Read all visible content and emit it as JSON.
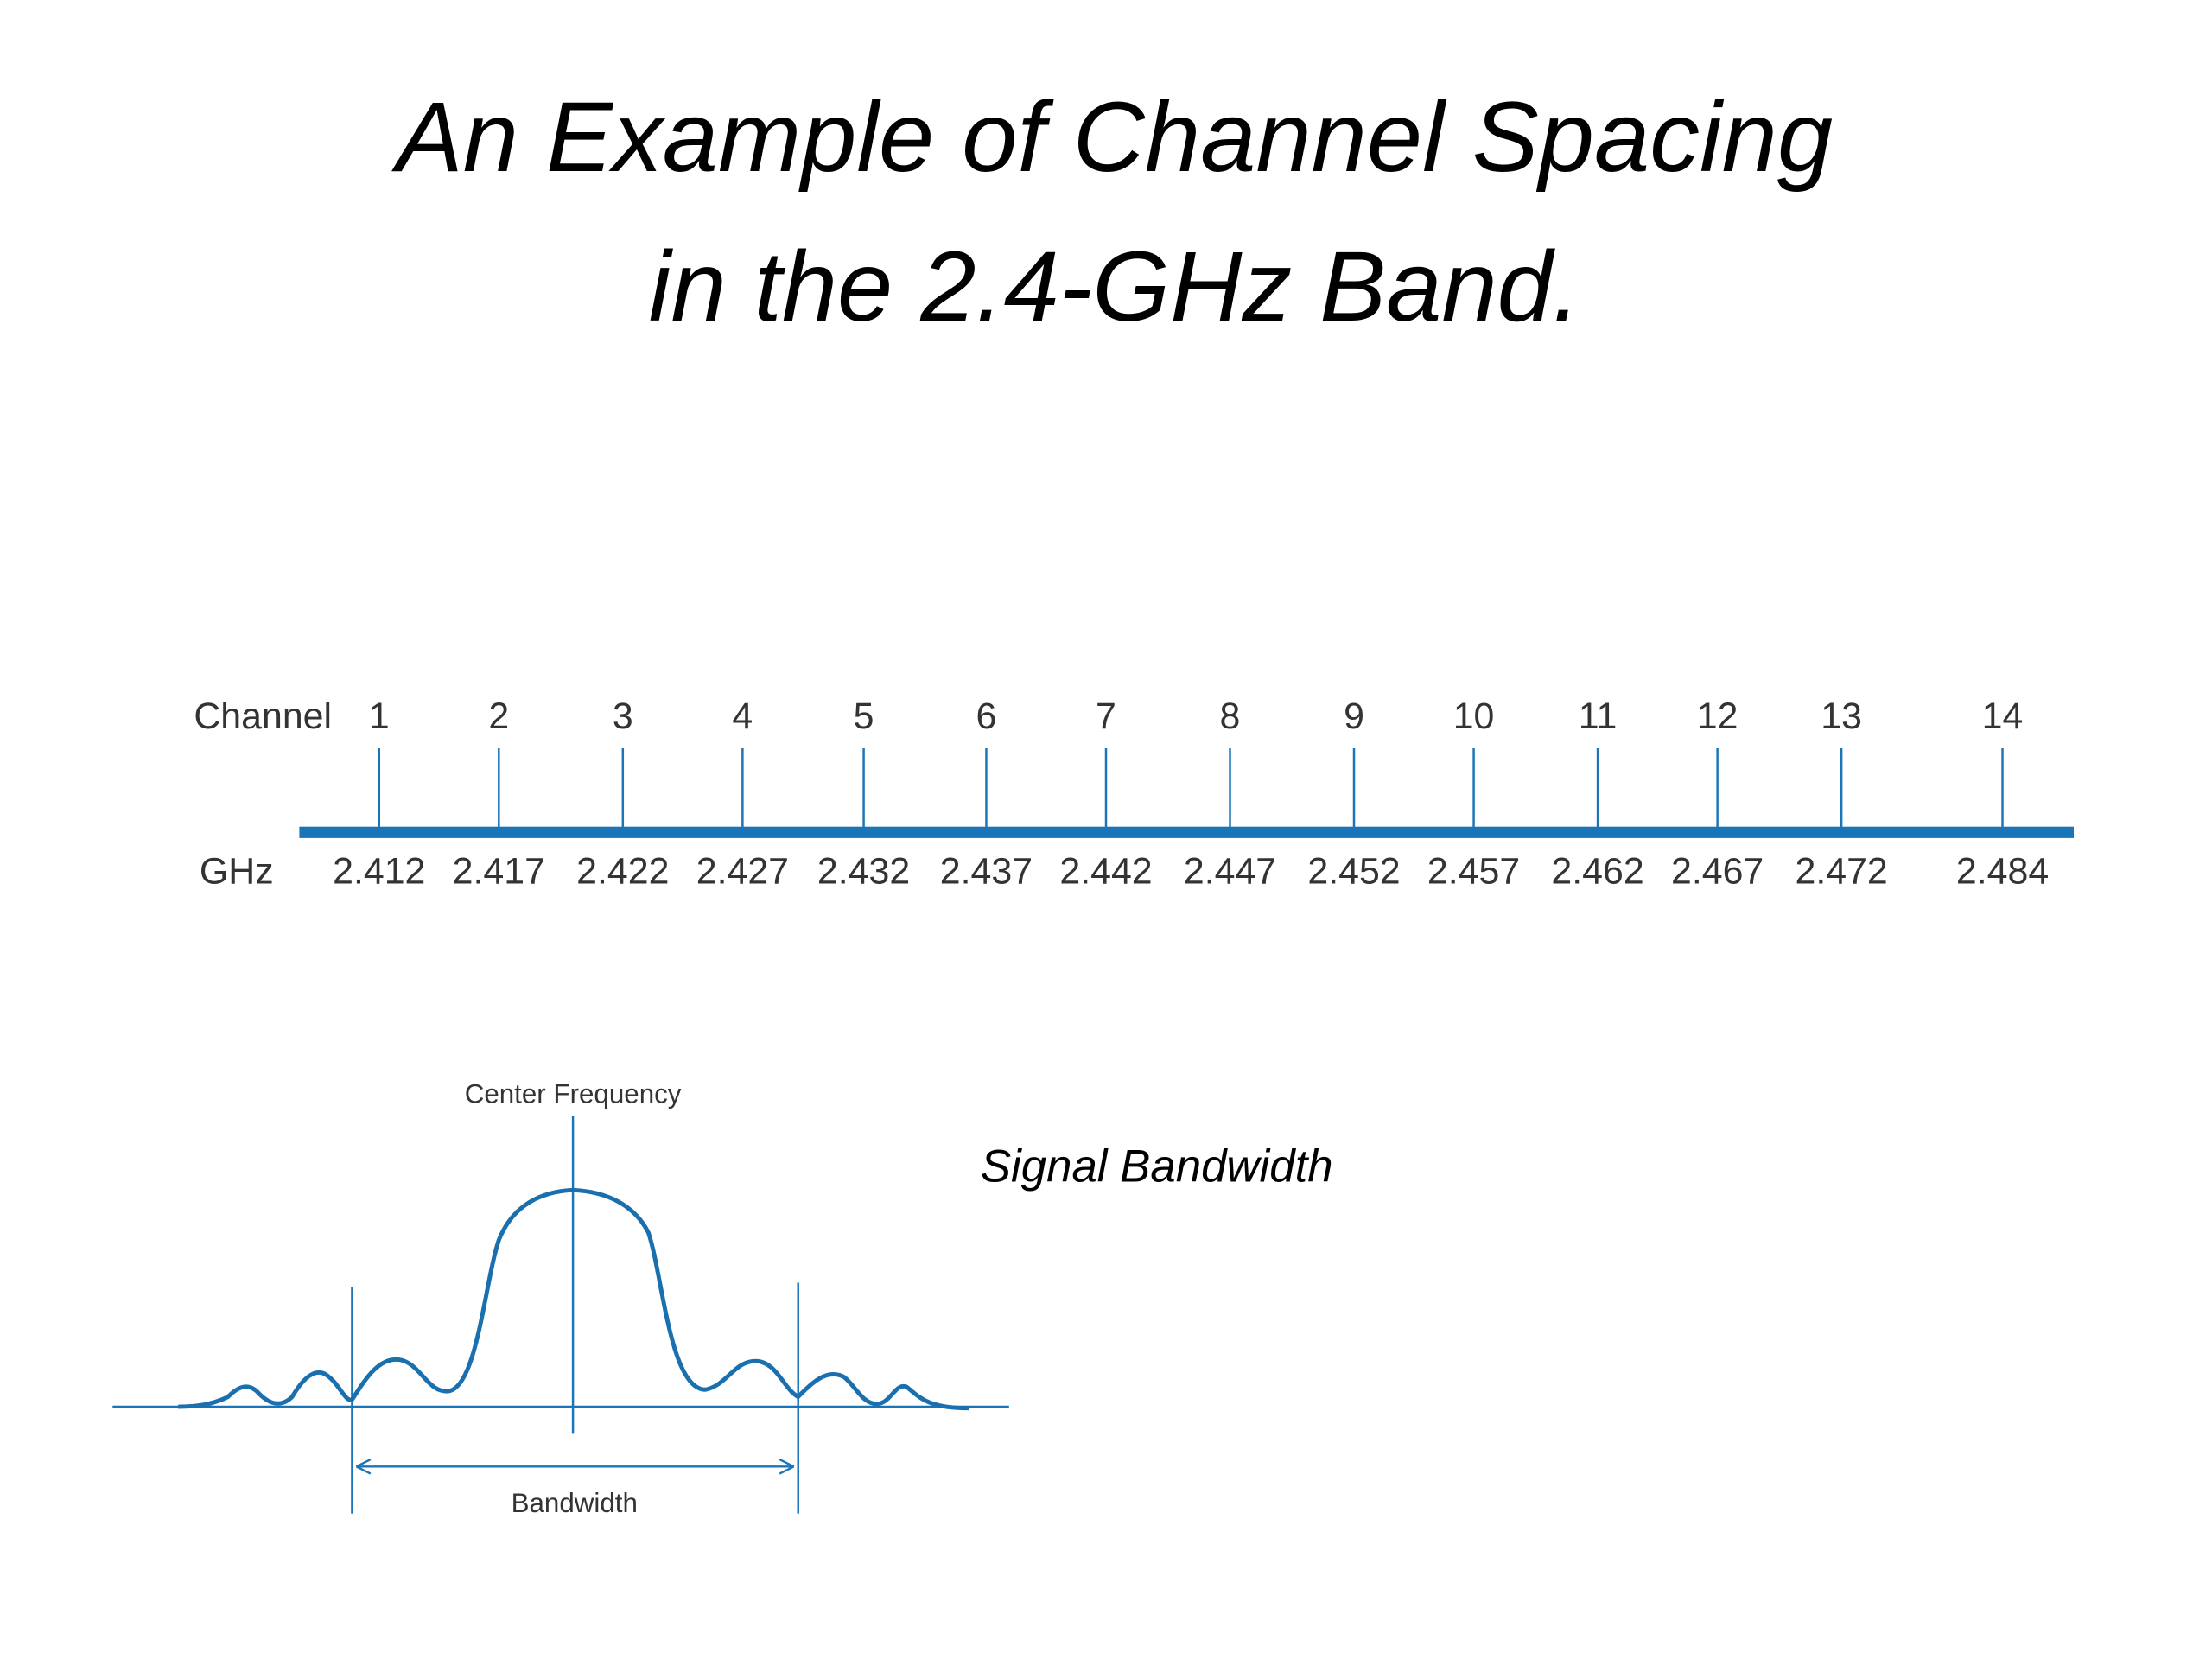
{
  "title": [
    "An Example of Channel Spacing",
    "in the 2.4-GHz Band."
  ],
  "channel_label": "Channel",
  "ghz_label": "GHz",
  "channels": [
    {
      "number": "1",
      "ghz": "2.412"
    },
    {
      "number": "2",
      "ghz": "2.417"
    },
    {
      "number": "3",
      "ghz": "2.422"
    },
    {
      "number": "4",
      "ghz": "2.427"
    },
    {
      "number": "5",
      "ghz": "2.432"
    },
    {
      "number": "6",
      "ghz": "2.437"
    },
    {
      "number": "7",
      "ghz": "2.442"
    },
    {
      "number": "8",
      "ghz": "2.447"
    },
    {
      "number": "9",
      "ghz": "2.452"
    },
    {
      "number": "10",
      "ghz": "2.457"
    },
    {
      "number": "11",
      "ghz": "2.462"
    },
    {
      "number": "12",
      "ghz": "2.467"
    },
    {
      "number": "13",
      "ghz": "2.472"
    },
    {
      "number": "14",
      "ghz": "2.484"
    }
  ],
  "signal_diagram": {
    "center_label": "Center Frequency",
    "bandwidth_label": "Bandwidth"
  },
  "caption": "Signal Bandwidth"
}
